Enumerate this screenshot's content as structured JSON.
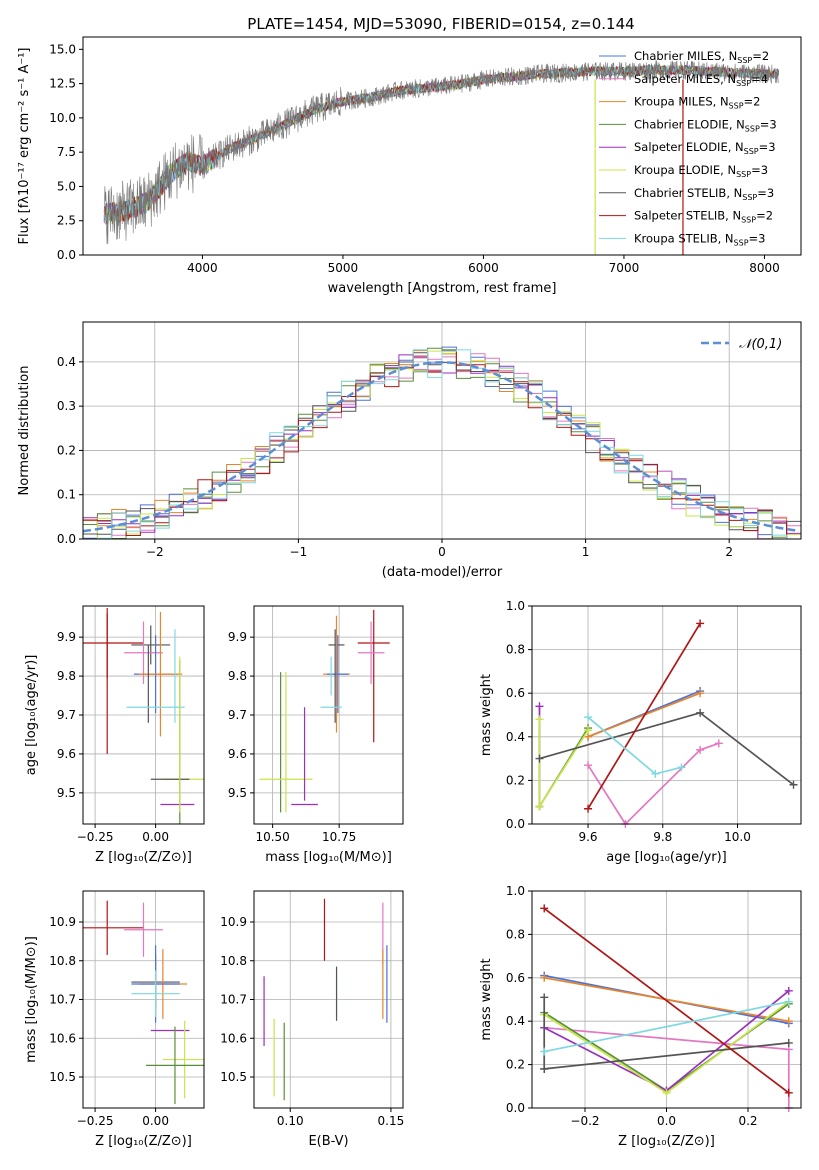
{
  "figure": {
    "title": "PLATE=1454, MJD=53090, FIBERID=0154, z=0.144"
  },
  "series_styles": [
    {
      "key": "chabrier_miles",
      "name": "Chabrier MILES, N",
      "nssp": "2",
      "color": "#4c72d9"
    },
    {
      "key": "salpeter_miles",
      "name": "Salpeter MILES, N",
      "nssp": "4",
      "color": "#e377c2"
    },
    {
      "key": "kroupa_miles",
      "name": "Kroupa MILES, N",
      "nssp": "2",
      "color": "#e8842a"
    },
    {
      "key": "chabrier_elodie",
      "name": "Chabrier ELODIE, N",
      "nssp": "3",
      "color": "#5a8f3a"
    },
    {
      "key": "salpeter_elodie",
      "name": "Salpeter ELODIE, N",
      "nssp": "3",
      "color": "#9b2fbf"
    },
    {
      "key": "kroupa_elodie",
      "name": "Kroupa ELODIE, N",
      "nssp": "3",
      "color": "#c7e64a"
    },
    {
      "key": "chabrier_stelib",
      "name": "Chabrier STELIB, N",
      "nssp": "3",
      "color": "#555555"
    },
    {
      "key": "salpeter_stelib",
      "name": "Salpeter STELIB, N",
      "nssp": "2",
      "color": "#b01515"
    },
    {
      "key": "kroupa_stelib",
      "name": "Kroupa STELIB, N",
      "nssp": "3",
      "color": "#7fd8e0"
    }
  ],
  "legend_subscript": "SSP",
  "chart_data": [
    {
      "id": "spectrum",
      "type": "line",
      "xlabel": "wavelength [Angstrom, rest frame]",
      "ylabel": "Flux [fλ10⁻¹⁷ erg cm⁻² s⁻¹ A⁻¹]",
      "xlim": [
        3150,
        8260
      ],
      "ylim": [
        0,
        15.9
      ],
      "xticks": [
        4000,
        5000,
        6000,
        7000,
        8000
      ],
      "yticks": [
        0.0,
        2.5,
        5.0,
        7.5,
        10.0,
        12.5,
        15.0
      ],
      "legend_position": "top-right",
      "data_trend": {
        "x": [
          3300,
          3450,
          3600,
          3700,
          3800,
          3900,
          4000,
          4200,
          4400,
          4600,
          4800,
          5000,
          5200,
          5400,
          5600,
          5800,
          6000,
          6200,
          6400,
          6600,
          6800,
          7000,
          7200,
          7400,
          7600,
          7800,
          8000,
          8100
        ],
        "y": [
          3.0,
          3.2,
          3.8,
          5.0,
          6.2,
          6.8,
          6.5,
          7.8,
          8.6,
          9.6,
          10.6,
          11.2,
          11.5,
          12.0,
          12.2,
          12.4,
          12.8,
          13.0,
          13.2,
          13.3,
          13.4,
          13.4,
          13.5,
          13.5,
          13.4,
          13.3,
          13.2,
          13.2
        ]
      },
      "model_spikes": [
        {
          "series": "kroupa_elodie",
          "x": 6795,
          "note": "drops to 0"
        },
        {
          "series": "salpeter_stelib",
          "x": 7420,
          "note": "drops to 0"
        }
      ]
    },
    {
      "id": "residual_hist",
      "type": "histogram",
      "xlabel": "(data-model)/error",
      "ylabel": "Normed distribution",
      "xlim": [
        -2.5,
        2.5
      ],
      "ylim": [
        0,
        0.49
      ],
      "xticks": [
        -2,
        -1,
        0,
        1,
        2
      ],
      "yticks": [
        0.0,
        0.1,
        0.2,
        0.3,
        0.4
      ],
      "grid": true,
      "reference_curve": {
        "label": "𝒩(0,1)",
        "style": "dashed",
        "color": "#5b8ed6"
      },
      "bin_width": 0.1,
      "legend_position": "top-right"
    },
    {
      "id": "age_vs_Z",
      "type": "scatter_errorbar",
      "xlabel": "Z [log₁₀(Z/Z⊙)]",
      "ylabel": "age  [log₁₀(age/yr)]",
      "xlim": [
        -0.3,
        0.2
      ],
      "ylim": [
        9.42,
        9.98
      ],
      "xticks": [
        -0.25,
        0.0
      ],
      "yticks": [
        9.5,
        9.6,
        9.7,
        9.8,
        9.9
      ],
      "grid": true,
      "points": [
        {
          "series": "salpeter_stelib",
          "x": -0.2,
          "xerr": 0.15,
          "y": 9.885,
          "yerr": 0.09
        },
        {
          "series": "salpeter_stelib",
          "x": -0.2,
          "xerr": 0.0,
          "y": 9.78,
          "yerr": 0.18
        },
        {
          "series": "chabrier_stelib",
          "x": -0.02,
          "xerr": 0.08,
          "y": 9.88,
          "yerr": 0.05
        },
        {
          "series": "salpeter_miles",
          "x": -0.05,
          "xerr": 0.08,
          "y": 9.86,
          "yerr": 0.08
        },
        {
          "series": "chabrier_miles",
          "x": 0.0,
          "xerr": 0.09,
          "y": 9.805,
          "yerr": 0.1
        },
        {
          "series": "kroupa_miles",
          "x": 0.02,
          "xerr": 0.09,
          "y": 9.805,
          "yerr": 0.16
        },
        {
          "series": "chabrier_stelib",
          "x": -0.03,
          "xerr": 0.0,
          "y": 9.78,
          "yerr": 0.1
        },
        {
          "series": "kroupa_stelib",
          "x": 0.0,
          "xerr": 0.12,
          "y": 9.72,
          "yerr": 0.0
        },
        {
          "series": "kroupa_stelib",
          "x": 0.08,
          "xerr": 0.0,
          "y": 9.8,
          "yerr": 0.12
        },
        {
          "series": "chabrier_elodie",
          "x": 0.1,
          "xerr": 0.0,
          "y": 9.6,
          "yerr": 0.24
        },
        {
          "series": "kroupa_elodie",
          "x": 0.12,
          "xerr": 0.09,
          "y": 9.535,
          "yerr": 0.0
        },
        {
          "series": "chabrier_stelib",
          "x": 0.06,
          "xerr": 0.08,
          "y": 9.535,
          "yerr": 0.0
        },
        {
          "series": "salpeter_elodie",
          "x": 0.09,
          "xerr": 0.07,
          "y": 9.47,
          "yerr": 0.0
        },
        {
          "series": "kroupa_elodie",
          "x": 0.1,
          "xerr": 0.0,
          "y": 9.65,
          "yerr": 0.2
        }
      ]
    },
    {
      "id": "age_vs_mass",
      "type": "scatter_errorbar",
      "xlabel": "mass [log₁₀(M/M⊙)]",
      "ylabel": "",
      "xlim": [
        10.43,
        10.99
      ],
      "ylim": [
        9.42,
        9.98
      ],
      "xticks": [
        10.5,
        10.75
      ],
      "yticks": [
        9.5,
        9.6,
        9.7,
        9.8,
        9.9
      ],
      "grid": true,
      "points": [
        {
          "series": "salpeter_stelib",
          "x": 10.88,
          "xerr": 0.06,
          "y": 9.885,
          "yerr": 0.0
        },
        {
          "series": "salpeter_stelib",
          "x": 10.88,
          "xerr": 0.0,
          "y": 9.8,
          "yerr": 0.17
        },
        {
          "series": "chabrier_stelib",
          "x": 10.74,
          "xerr": 0.03,
          "y": 9.88,
          "yerr": 0.0
        },
        {
          "series": "salpeter_miles",
          "x": 10.87,
          "xerr": 0.05,
          "y": 9.86,
          "yerr": 0.08
        },
        {
          "series": "kroupa_miles",
          "x": 10.74,
          "xerr": 0.05,
          "y": 9.805,
          "yerr": 0.15
        },
        {
          "series": "chabrier_miles",
          "x": 10.745,
          "xerr": 0.04,
          "y": 9.805,
          "yerr": 0.1
        },
        {
          "series": "chabrier_stelib",
          "x": 10.735,
          "xerr": 0.0,
          "y": 9.8,
          "yerr": 0.12
        },
        {
          "series": "kroupa_stelib",
          "x": 10.72,
          "xerr": 0.04,
          "y": 9.72,
          "yerr": 0.0
        },
        {
          "series": "kroupa_stelib",
          "x": 10.72,
          "xerr": 0.0,
          "y": 9.8,
          "yerr": 0.05
        },
        {
          "series": "chabrier_elodie",
          "x": 10.53,
          "xerr": 0.0,
          "y": 9.63,
          "yerr": 0.18
        },
        {
          "series": "kroupa_elodie",
          "x": 10.55,
          "xerr": 0.1,
          "y": 9.535,
          "yerr": 0.0
        },
        {
          "series": "kroupa_elodie",
          "x": 10.55,
          "xerr": 0.0,
          "y": 9.63,
          "yerr": 0.18
        },
        {
          "series": "salpeter_elodie",
          "x": 10.62,
          "xerr": 0.05,
          "y": 9.47,
          "yerr": 0.0
        },
        {
          "series": "salpeter_elodie",
          "x": 10.62,
          "xerr": 0.0,
          "y": 9.6,
          "yerr": 0.12
        }
      ]
    },
    {
      "id": "weight_vs_age",
      "type": "line",
      "xlabel": "age  [log₁₀(age/yr)]",
      "ylabel": "mass weight",
      "xlim": [
        9.45,
        10.17
      ],
      "ylim": [
        0,
        1.0
      ],
      "xticks": [
        9.6,
        9.8,
        10.0
      ],
      "yticks": [
        0.0,
        0.2,
        0.4,
        0.6,
        0.8,
        1.0
      ],
      "grid": true,
      "series": [
        {
          "series": "chabrier_miles",
          "x": [
            9.6,
            9.9
          ],
          "y": [
            0.4,
            0.61
          ]
        },
        {
          "series": "kroupa_miles",
          "x": [
            9.6,
            9.9
          ],
          "y": [
            0.4,
            0.6
          ]
        },
        {
          "series": "salpeter_miles",
          "x": [
            9.6,
            9.7,
            9.9,
            9.95
          ],
          "y": [
            0.27,
            0.0,
            0.34,
            0.37
          ]
        },
        {
          "series": "chabrier_elodie",
          "x": [
            9.47,
            9.6
          ],
          "y": [
            0.08,
            0.44
          ]
        },
        {
          "series": "salpeter_elodie",
          "x": [
            9.47,
            9.47
          ],
          "y": [
            0.54,
            0.08
          ]
        },
        {
          "series": "kroupa_elodie",
          "x": [
            9.47,
            9.47,
            9.6
          ],
          "y": [
            0.48,
            0.08,
            0.43
          ]
        },
        {
          "series": "chabrier_stelib",
          "x": [
            9.47,
            9.9,
            10.15
          ],
          "y": [
            0.3,
            0.51,
            0.18
          ]
        },
        {
          "series": "salpeter_stelib",
          "x": [
            9.6,
            9.9
          ],
          "y": [
            0.07,
            0.92
          ]
        },
        {
          "series": "kroupa_stelib",
          "x": [
            9.6,
            9.78,
            9.85
          ],
          "y": [
            0.49,
            0.23,
            0.26
          ]
        }
      ]
    },
    {
      "id": "mass_vs_Z",
      "type": "scatter_errorbar",
      "xlabel": "Z [log₁₀(Z/Z⊙)]",
      "ylabel": "mass [log₁₀(M/M⊙)]",
      "xlim": [
        -0.3,
        0.2
      ],
      "ylim": [
        10.42,
        10.98
      ],
      "xticks": [
        -0.25,
        0.0
      ],
      "yticks": [
        10.5,
        10.6,
        10.7,
        10.8,
        10.9
      ],
      "grid": true,
      "points": [
        {
          "series": "salpeter_stelib",
          "x": -0.2,
          "xerr": 0.15,
          "y": 10.885,
          "yerr": 0.07
        },
        {
          "series": "salpeter_miles",
          "x": -0.05,
          "xerr": 0.08,
          "y": 10.88,
          "yerr": 0.07
        },
        {
          "series": "chabrier_stelib",
          "x": 0.0,
          "xerr": 0.1,
          "y": 10.745,
          "yerr": 0.07
        },
        {
          "series": "kroupa_miles",
          "x": 0.03,
          "xerr": 0.1,
          "y": 10.74,
          "yerr": 0.09
        },
        {
          "series": "chabrier_miles",
          "x": 0.0,
          "xerr": 0.1,
          "y": 10.74,
          "yerr": 0.1
        },
        {
          "series": "kroupa_stelib",
          "x": 0.0,
          "xerr": 0.1,
          "y": 10.715,
          "yerr": 0.06
        },
        {
          "series": "salpeter_elodie",
          "x": 0.06,
          "xerr": 0.08,
          "y": 10.62,
          "yerr": 0.0
        },
        {
          "series": "kroupa_elodie",
          "x": 0.12,
          "xerr": 0.09,
          "y": 10.545,
          "yerr": 0.1
        },
        {
          "series": "chabrier_elodie",
          "x": 0.08,
          "xerr": 0.12,
          "y": 10.53,
          "yerr": 0.1
        }
      ]
    },
    {
      "id": "mass_vs_ebv",
      "type": "scatter_errorbar",
      "xlabel": "E(B-V)",
      "ylabel": "",
      "xlim": [
        0.082,
        0.156
      ],
      "ylim": [
        10.42,
        10.98
      ],
      "xticks": [
        0.1,
        0.15
      ],
      "yticks": [
        10.5,
        10.6,
        10.7,
        10.8,
        10.9
      ],
      "grid": true,
      "points": [
        {
          "series": "salpeter_stelib",
          "x": 0.117,
          "xerr": 0.0,
          "y": 10.88,
          "yerr": 0.08
        },
        {
          "series": "salpeter_miles",
          "x": 0.146,
          "xerr": 0.0,
          "y": 10.87,
          "yerr": 0.08
        },
        {
          "series": "chabrier_miles",
          "x": 0.148,
          "xerr": 0.0,
          "y": 10.74,
          "yerr": 0.1
        },
        {
          "series": "kroupa_miles",
          "x": 0.146,
          "xerr": 0.0,
          "y": 10.74,
          "yerr": 0.09
        },
        {
          "series": "kroupa_stelib",
          "x": 0.123,
          "xerr": 0.0,
          "y": 10.715,
          "yerr": 0.06
        },
        {
          "series": "chabrier_stelib",
          "x": 0.123,
          "xerr": 0.0,
          "y": 10.715,
          "yerr": 0.07
        },
        {
          "series": "salpeter_elodie",
          "x": 0.087,
          "xerr": 0.0,
          "y": 10.67,
          "yerr": 0.09
        },
        {
          "series": "kroupa_elodie",
          "x": 0.092,
          "xerr": 0.0,
          "y": 10.55,
          "yerr": 0.1
        },
        {
          "series": "chabrier_elodie",
          "x": 0.097,
          "xerr": 0.0,
          "y": 10.54,
          "yerr": 0.1
        }
      ]
    },
    {
      "id": "weight_vs_Z",
      "type": "line",
      "xlabel": "Z [log₁₀(Z/Z⊙)]",
      "ylabel": "mass weight",
      "xlim": [
        -0.33,
        0.33
      ],
      "ylim": [
        0,
        1.0
      ],
      "xticks": [
        -0.2,
        0.0,
        0.2
      ],
      "yticks": [
        0.0,
        0.2,
        0.4,
        0.6,
        0.8,
        1.0
      ],
      "grid": true,
      "series": [
        {
          "series": "chabrier_miles",
          "x": [
            -0.3,
            0.3
          ],
          "y": [
            0.61,
            0.39
          ]
        },
        {
          "series": "kroupa_miles",
          "x": [
            -0.3,
            0.3
          ],
          "y": [
            0.6,
            0.4
          ]
        },
        {
          "series": "salpeter_miles",
          "x": [
            -0.3,
            0.3,
            0.3
          ],
          "y": [
            0.37,
            0.27,
            0.0
          ]
        },
        {
          "series": "chabrier_elodie",
          "x": [
            -0.3,
            0.0,
            0.3
          ],
          "y": [
            0.44,
            0.08,
            0.48
          ]
        },
        {
          "series": "salpeter_elodie",
          "x": [
            -0.3,
            0.0,
            0.3
          ],
          "y": [
            0.37,
            0.08,
            0.54
          ]
        },
        {
          "series": "kroupa_elodie",
          "x": [
            -0.3,
            0.0,
            0.3
          ],
          "y": [
            0.43,
            0.07,
            0.49
          ]
        },
        {
          "series": "chabrier_stelib",
          "x": [
            -0.3,
            0.3
          ],
          "y": [
            0.18,
            0.3
          ]
        },
        {
          "series": "chabrier_stelib",
          "x": [
            -0.3,
            -0.3
          ],
          "y": [
            0.51,
            0.18
          ]
        },
        {
          "series": "salpeter_stelib",
          "x": [
            -0.3,
            0.3
          ],
          "y": [
            0.92,
            0.07
          ]
        },
        {
          "series": "kroupa_stelib",
          "x": [
            -0.3,
            0.3
          ],
          "y": [
            0.26,
            0.49
          ]
        }
      ]
    }
  ]
}
